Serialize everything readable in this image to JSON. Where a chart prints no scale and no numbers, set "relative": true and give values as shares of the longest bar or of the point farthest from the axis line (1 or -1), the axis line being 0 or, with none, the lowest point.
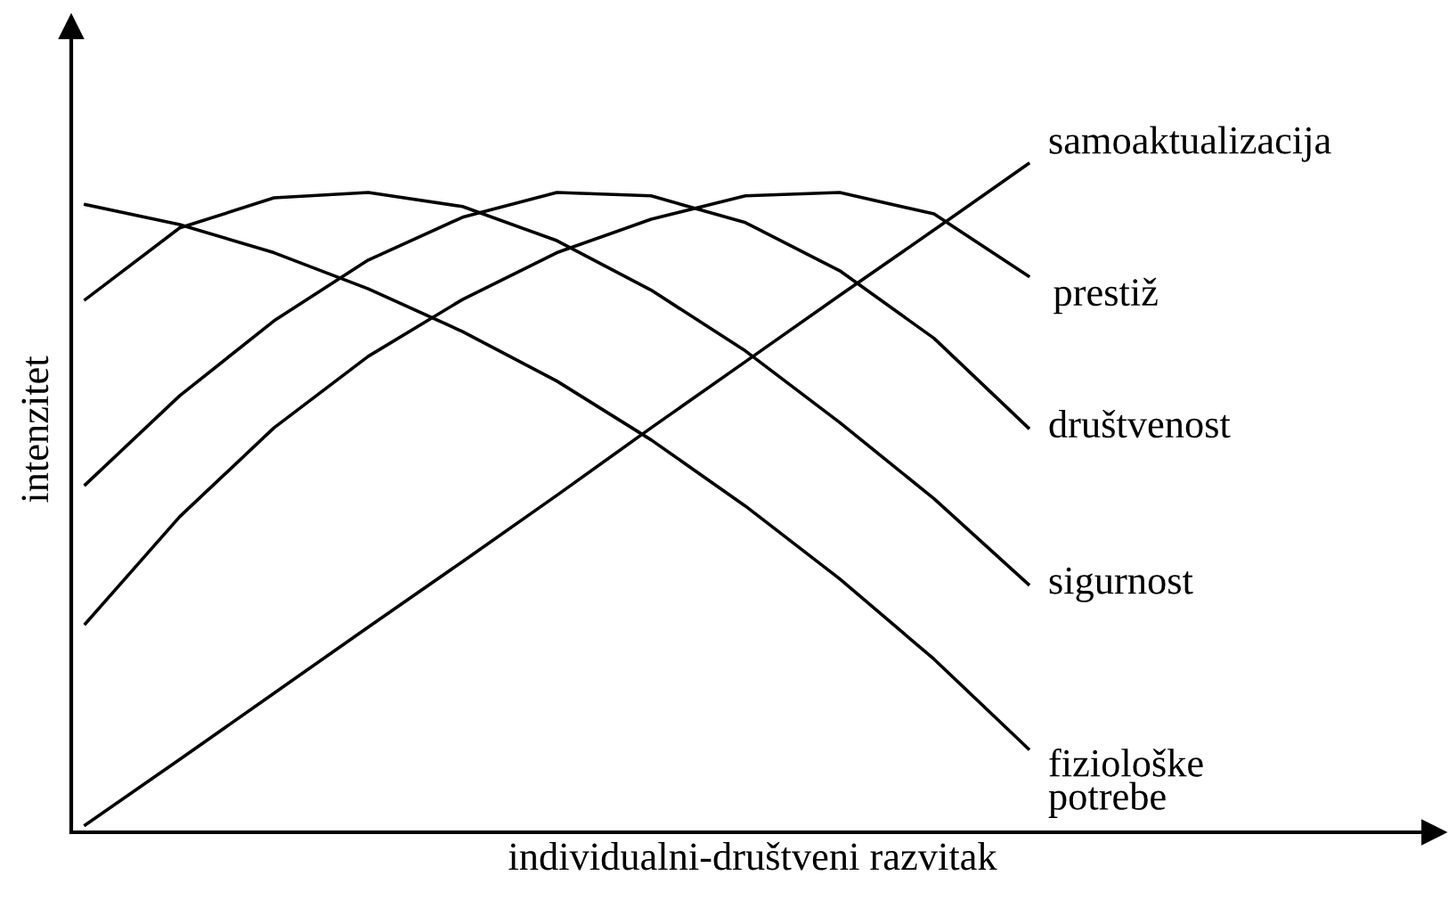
{
  "chart_data": {
    "type": "line",
    "relative": true,
    "xlabel": "individualni-društveni razvitak",
    "ylabel": "intenzitet",
    "categories": [
      null,
      null,
      null,
      null,
      null,
      null,
      null,
      null,
      null,
      null,
      null
    ],
    "legend": false,
    "marker": "none",
    "line_style": "solid",
    "series": [
      {
        "name": "samoaktualizacija",
        "color": "#000000",
        "values": [
          0.011,
          0.109,
          0.208,
          0.307,
          0.405,
          0.504,
          0.605,
          0.704,
          0.803,
          0.901,
          1
        ]
      },
      {
        "name": "prestiž",
        "color": "#000000",
        "values": [
          0.312,
          0.472,
          0.605,
          0.712,
          0.797,
          0.867,
          0.917,
          0.952,
          0.957,
          0.925,
          0.832
        ]
      },
      {
        "name": "društvenost",
        "color": "#000000",
        "values": [
          0.52,
          0.653,
          0.765,
          0.856,
          0.92,
          0.957,
          0.952,
          0.912,
          0.84,
          0.739,
          0.605
        ]
      },
      {
        "name": "sigurnost",
        "color": "#000000",
        "values": [
          0.797,
          0.904,
          0.949,
          0.957,
          0.936,
          0.885,
          0.811,
          0.72,
          0.613,
          0.499,
          0.371
        ]
      },
      {
        "name": "fiziološke\npotrebe",
        "color": "#000000",
        "values": [
          0.939,
          0.909,
          0.867,
          0.813,
          0.749,
          0.675,
          0.587,
          0.488,
          0.379,
          0.259,
          0.125
        ]
      }
    ]
  }
}
